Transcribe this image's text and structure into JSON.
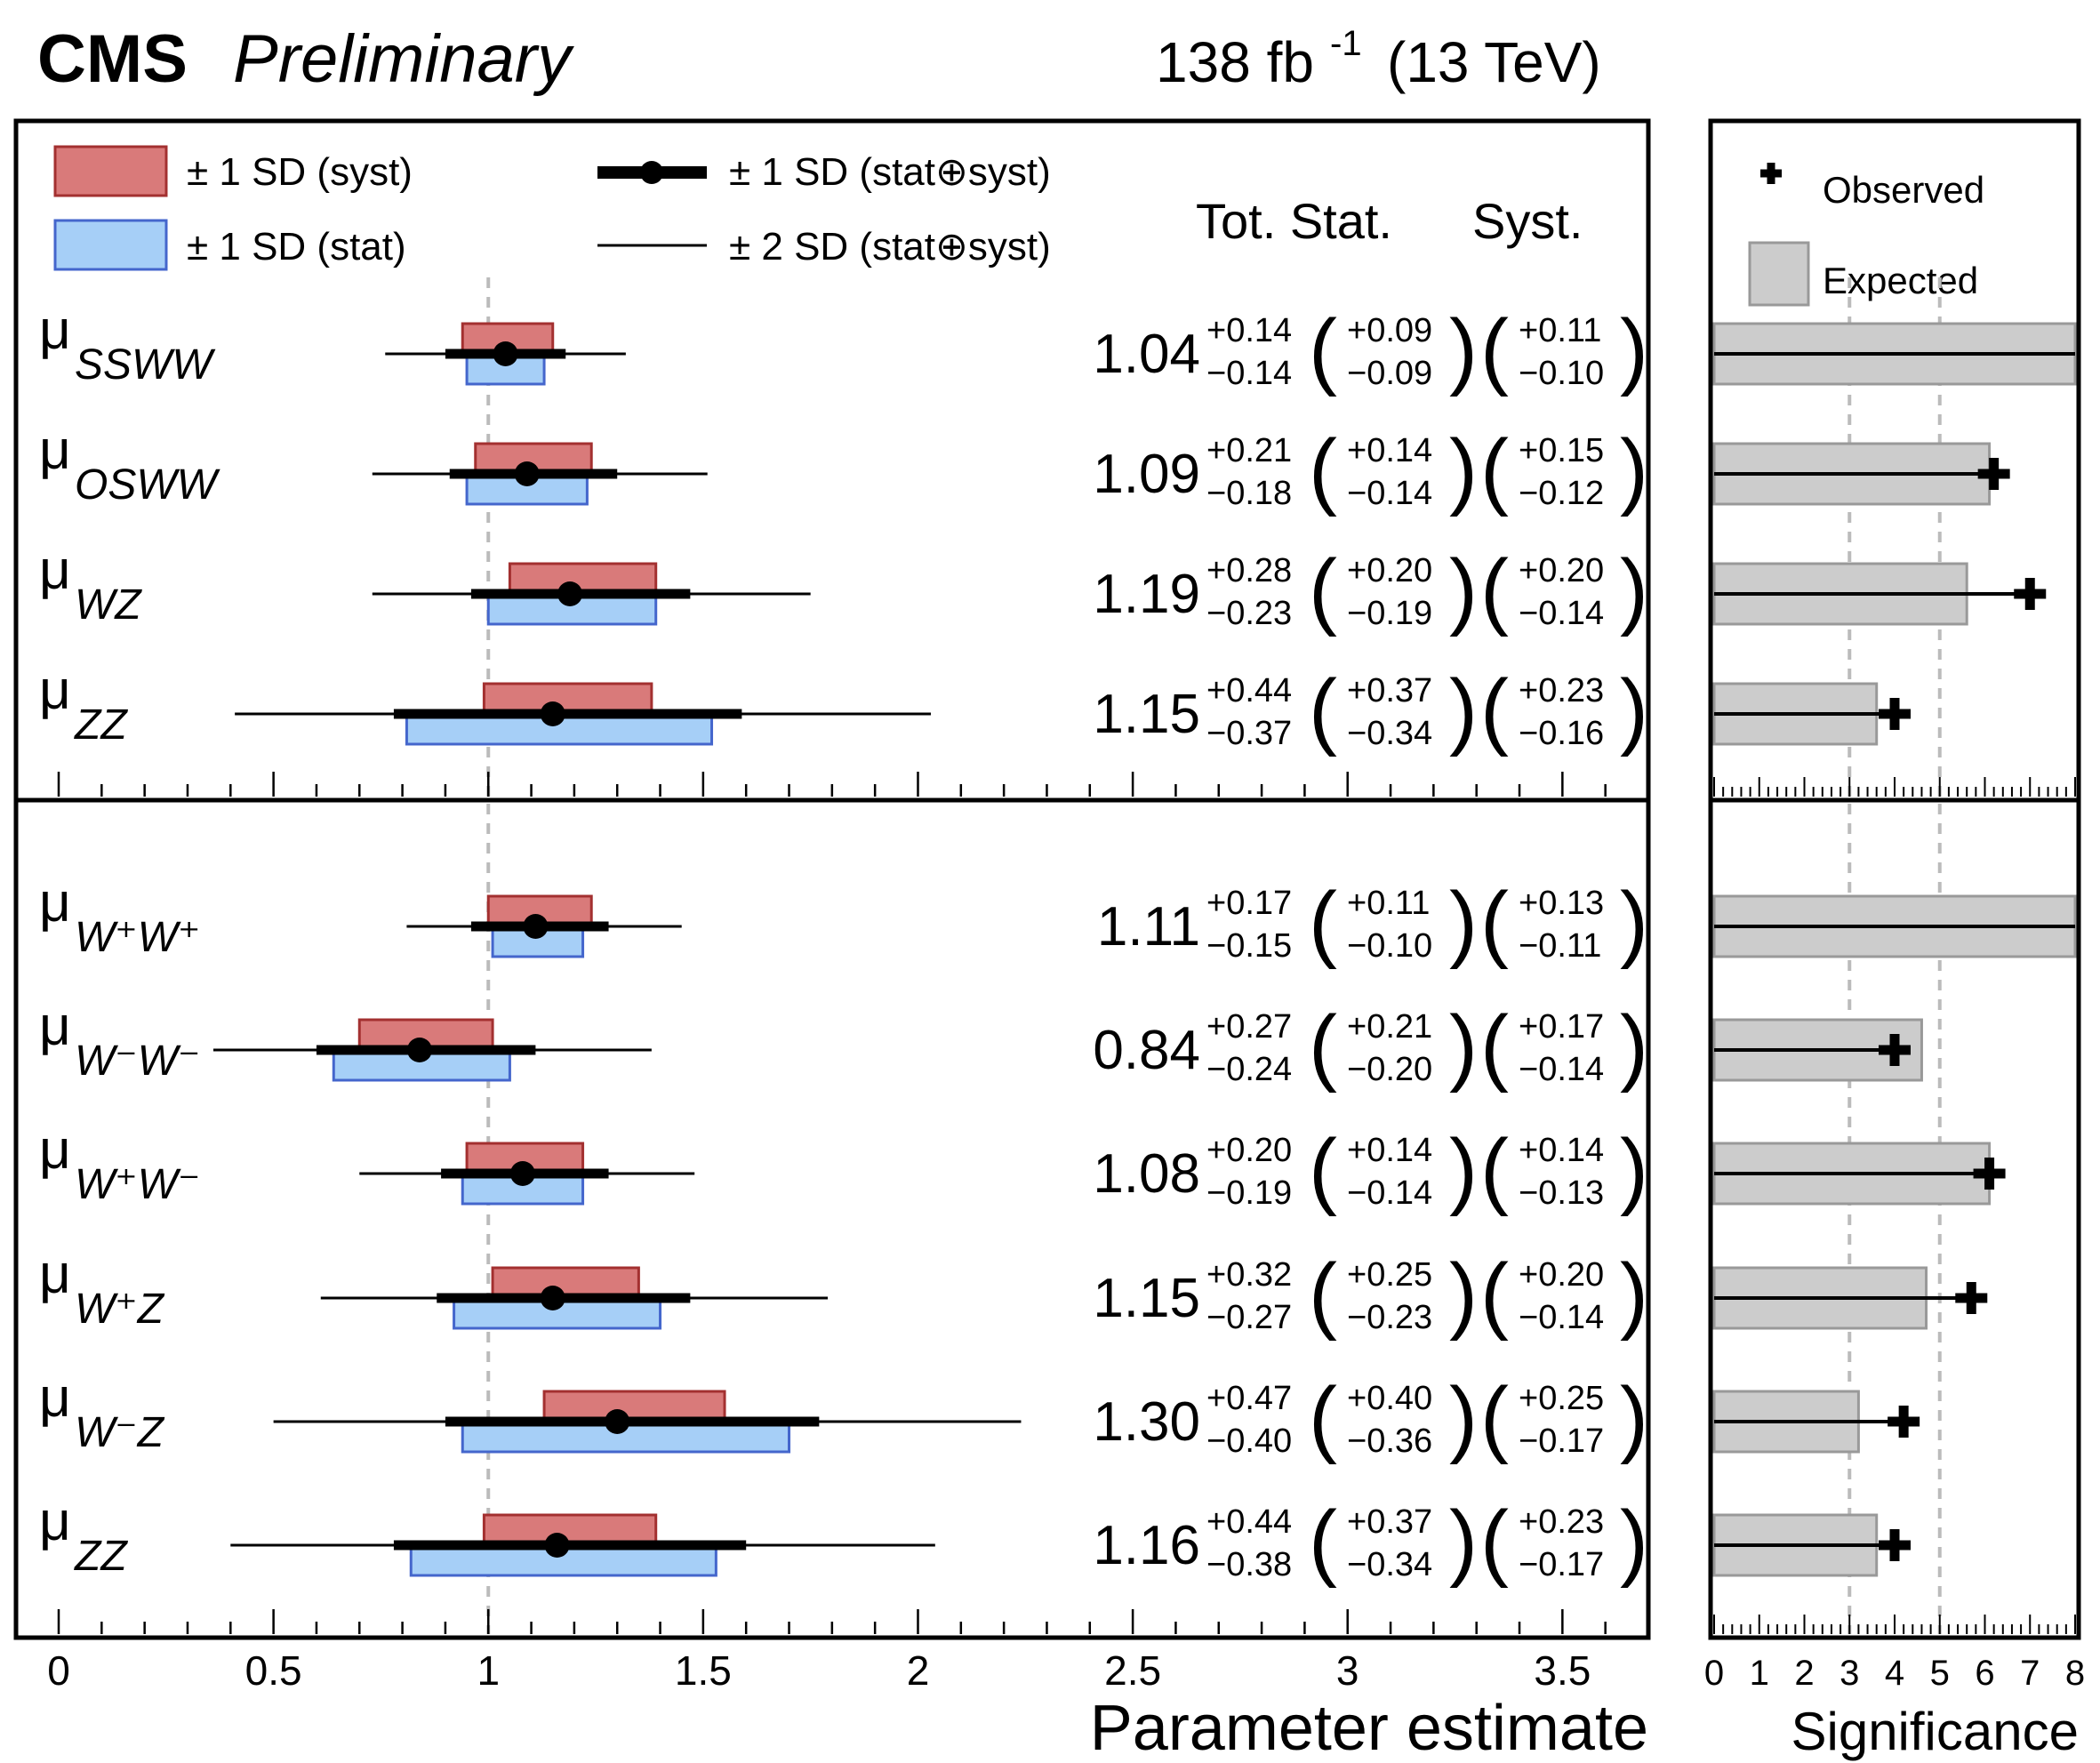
{
  "header": {
    "experiment": "CMS",
    "status": "Preliminary",
    "lumi": "138 fb",
    "lumi_exp": "-1",
    "energy": "(13 TeV)"
  },
  "legend": {
    "syst": "± 1 SD (syst)",
    "stat": "± 1 SD (stat)",
    "one_sd": "± 1 SD (stat⊕syst)",
    "two_sd": "± 2 SD (stat⊕syst)",
    "observed": "Observed",
    "expected": "Expected"
  },
  "column_headers": {
    "tot_stat": "Tot. Stat.",
    "syst": "Syst."
  },
  "colors": {
    "syst_fill": "#d97a7a",
    "syst_edge": "#a33030",
    "stat_fill": "#a6cff7",
    "stat_edge": "#4466cc",
    "expected_fill": "#cccccc",
    "expected_edge": "#999999",
    "reference_line": "#bbbbbb"
  },
  "chart_data": [
    {
      "type": "scatter",
      "description_kind": "parameter estimates with uncertainty bands",
      "xlabel": "Parameter estimate",
      "xlim": [
        0,
        3.7
      ],
      "xticks": [
        "0",
        "0.5",
        "1",
        "1.5",
        "2",
        "2.5",
        "3",
        "3.5"
      ],
      "reference_value": 1,
      "panels": [
        {
          "rows": [
            {
              "label": "μ",
              "sub": "SSWW",
              "value": "1.04",
              "tot_up": "+0.14",
              "tot_dn": "−0.14",
              "stat_up": "+0.09",
              "stat_dn": "−0.09",
              "syst_up": "+0.11",
              "syst_dn": "−0.10",
              "sig_obs": null,
              "sig_exp": 8.0
            },
            {
              "label": "μ",
              "sub": "OSWW",
              "value": "1.09",
              "tot_up": "+0.21",
              "tot_dn": "−0.18",
              "stat_up": "+0.14",
              "stat_dn": "−0.14",
              "syst_up": "+0.15",
              "syst_dn": "−0.12",
              "sig_obs": 6.2,
              "sig_exp": 6.1
            },
            {
              "label": "μ",
              "sub": "WZ",
              "value": "1.19",
              "tot_up": "+0.28",
              "tot_dn": "−0.23",
              "stat_up": "+0.20",
              "stat_dn": "−0.19",
              "syst_up": "+0.20",
              "syst_dn": "−0.14",
              "sig_obs": 7.0,
              "sig_exp": 5.6
            },
            {
              "label": "μ",
              "sub": "ZZ",
              "value": "1.15",
              "tot_up": "+0.44",
              "tot_dn": "−0.37",
              "stat_up": "+0.37",
              "stat_dn": "−0.34",
              "syst_up": "+0.23",
              "syst_dn": "−0.16",
              "sig_obs": 4.0,
              "sig_exp": 3.6
            }
          ]
        },
        {
          "rows": [
            {
              "label": "μ",
              "sub": "W⁺W⁺",
              "value": "1.11",
              "tot_up": "+0.17",
              "tot_dn": "−0.15",
              "stat_up": "+0.11",
              "stat_dn": "−0.10",
              "syst_up": "+0.13",
              "syst_dn": "−0.11",
              "sig_obs": null,
              "sig_exp": 8.0
            },
            {
              "label": "μ",
              "sub": "W⁻W⁻",
              "value": "0.84",
              "tot_up": "+0.27",
              "tot_dn": "−0.24",
              "stat_up": "+0.21",
              "stat_dn": "−0.20",
              "syst_up": "+0.17",
              "syst_dn": "−0.14",
              "sig_obs": 4.0,
              "sig_exp": 4.6
            },
            {
              "label": "μ",
              "sub": "W⁺W⁻",
              "value": "1.08",
              "tot_up": "+0.20",
              "tot_dn": "−0.19",
              "stat_up": "+0.14",
              "stat_dn": "−0.14",
              "syst_up": "+0.14",
              "syst_dn": "−0.13",
              "sig_obs": 6.1,
              "sig_exp": 6.1
            },
            {
              "label": "μ",
              "sub": "W⁺Z",
              "value": "1.15",
              "tot_up": "+0.32",
              "tot_dn": "−0.27",
              "stat_up": "+0.25",
              "stat_dn": "−0.23",
              "syst_up": "+0.20",
              "syst_dn": "−0.14",
              "sig_obs": 5.7,
              "sig_exp": 4.7
            },
            {
              "label": "μ",
              "sub": "W⁻Z",
              "value": "1.30",
              "tot_up": "+0.47",
              "tot_dn": "−0.40",
              "stat_up": "+0.40",
              "stat_dn": "−0.36",
              "syst_up": "+0.25",
              "syst_dn": "−0.17",
              "sig_obs": 4.2,
              "sig_exp": 3.2
            },
            {
              "label": "μ",
              "sub": "ZZ",
              "value": "1.16",
              "tot_up": "+0.44",
              "tot_dn": "−0.38",
              "stat_up": "+0.37",
              "stat_dn": "−0.34",
              "syst_up": "+0.23",
              "syst_dn": "−0.17",
              "sig_obs": 4.0,
              "sig_exp": 3.6
            }
          ]
        }
      ]
    },
    {
      "type": "bar",
      "xlabel": "Significance",
      "xlim": [
        0,
        8
      ],
      "xticks": [
        "0",
        "1",
        "2",
        "3",
        "4",
        "5",
        "6",
        "7",
        "8"
      ],
      "reference_lines": [
        3,
        5
      ],
      "series": [
        {
          "name": "Observed",
          "values_ref": "sig_obs"
        },
        {
          "name": "Expected",
          "values_ref": "sig_exp"
        }
      ]
    }
  ]
}
